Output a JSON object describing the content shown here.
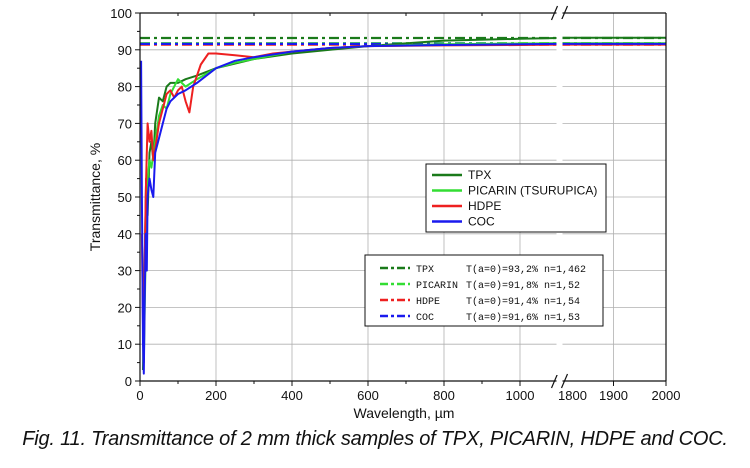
{
  "caption": "Fig.  11. Transmittance of 2 mm thick samples of TPX, PICARIN, HDPE and COC.",
  "chart_data": {
    "type": "line",
    "title": "",
    "xlabel": "Wavelength, µm",
    "ylabel": "Transmittance, %",
    "ylim": [
      0,
      100
    ],
    "xlim_main": [
      0,
      1100
    ],
    "xlim_break": [
      1800,
      2000
    ],
    "x_ticks_main": [
      "0",
      "200",
      "400",
      "600",
      "800",
      "1000"
    ],
    "x_ticks_break": [
      "1800",
      "1900",
      "2000"
    ],
    "y_ticks": [
      "0",
      "10",
      "20",
      "30",
      "40",
      "50",
      "60",
      "70",
      "80",
      "90",
      "100"
    ],
    "grid": true,
    "legend_lines": [
      {
        "name": "TPX",
        "color": "#1a7a1a"
      },
      {
        "name": "PICARIN (TSURUPICA)",
        "color": "#33dd33"
      },
      {
        "name": "HDPE",
        "color": "#ee2020"
      },
      {
        "name": "COC",
        "color": "#1a1aee"
      }
    ],
    "legend_dash": [
      {
        "name": "TPX",
        "text": "T(a=0)=93,2% n=1,462",
        "value": 93.2,
        "color": "#1a7a1a"
      },
      {
        "name": "PICARIN",
        "text": "T(a=0)=91,8% n=1,52",
        "value": 91.8,
        "color": "#33dd33"
      },
      {
        "name": "HDPE",
        "text": "T(a=0)=91,4% n=1,54",
        "value": 91.4,
        "color": "#ee2020"
      },
      {
        "name": "COC",
        "text": "T(a=0)=91,6% n=1,53",
        "value": 91.6,
        "color": "#1a1aee"
      }
    ],
    "series": [
      {
        "name": "TPX",
        "color": "#1a7a1a",
        "x": [
          8,
          12,
          16,
          20,
          25,
          30,
          35,
          40,
          50,
          60,
          70,
          80,
          90,
          100,
          120,
          150,
          200,
          300,
          400,
          500,
          600,
          800,
          1000,
          1100,
          1800,
          2000
        ],
        "y": [
          3,
          30,
          55,
          45,
          62,
          65,
          60,
          70,
          77,
          76,
          80,
          81,
          81,
          81,
          82,
          83,
          85,
          87.5,
          89,
          90,
          91,
          92.5,
          93,
          93.2,
          93.3,
          93.3
        ]
      },
      {
        "name": "PICARIN (TSURUPICA)",
        "color": "#33dd33",
        "x": [
          10,
          15,
          20,
          25,
          30,
          40,
          50,
          60,
          70,
          80,
          90,
          100,
          120,
          150,
          200,
          250,
          300,
          400,
          500,
          600,
          800,
          1000,
          1100,
          1800,
          2000
        ],
        "y": [
          5,
          35,
          55,
          60,
          58,
          65,
          72,
          75,
          74,
          78,
          80,
          82,
          80,
          82,
          85,
          86.5,
          87.5,
          89.5,
          90.5,
          91,
          91.5,
          91.7,
          91.8,
          91.8,
          91.8
        ]
      },
      {
        "name": "HDPE",
        "color": "#ee2020",
        "x": [
          5,
          8,
          10,
          12,
          15,
          18,
          20,
          25,
          30,
          35,
          40,
          50,
          60,
          70,
          80,
          90,
          100,
          110,
          120,
          130,
          140,
          160,
          180,
          200,
          250,
          300,
          350,
          400,
          500,
          600,
          800,
          1000,
          1100,
          1800,
          2000
        ],
        "y": [
          40,
          15,
          5,
          30,
          50,
          62,
          70,
          65,
          68,
          60,
          63,
          70,
          74,
          78,
          79,
          77,
          79,
          80,
          76,
          73,
          80,
          86,
          89,
          89,
          88.5,
          88,
          89,
          89.5,
          90.5,
          91,
          91.2,
          91.3,
          91.4,
          91.4,
          91.4
        ]
      },
      {
        "name": "COC",
        "color": "#1a1aee",
        "x": [
          3,
          5,
          8,
          10,
          12,
          15,
          18,
          20,
          25,
          30,
          35,
          40,
          50,
          60,
          70,
          80,
          100,
          120,
          150,
          200,
          250,
          300,
          400,
          500,
          600,
          800,
          1000,
          1100,
          1800,
          2000
        ],
        "y": [
          87,
          50,
          10,
          2,
          20,
          40,
          30,
          50,
          55,
          52,
          50,
          62,
          66,
          70,
          74,
          76,
          78,
          79,
          81,
          85,
          87,
          88,
          89.5,
          90.5,
          91,
          91.3,
          91.5,
          91.6,
          91.6,
          91.6
        ]
      }
    ]
  }
}
